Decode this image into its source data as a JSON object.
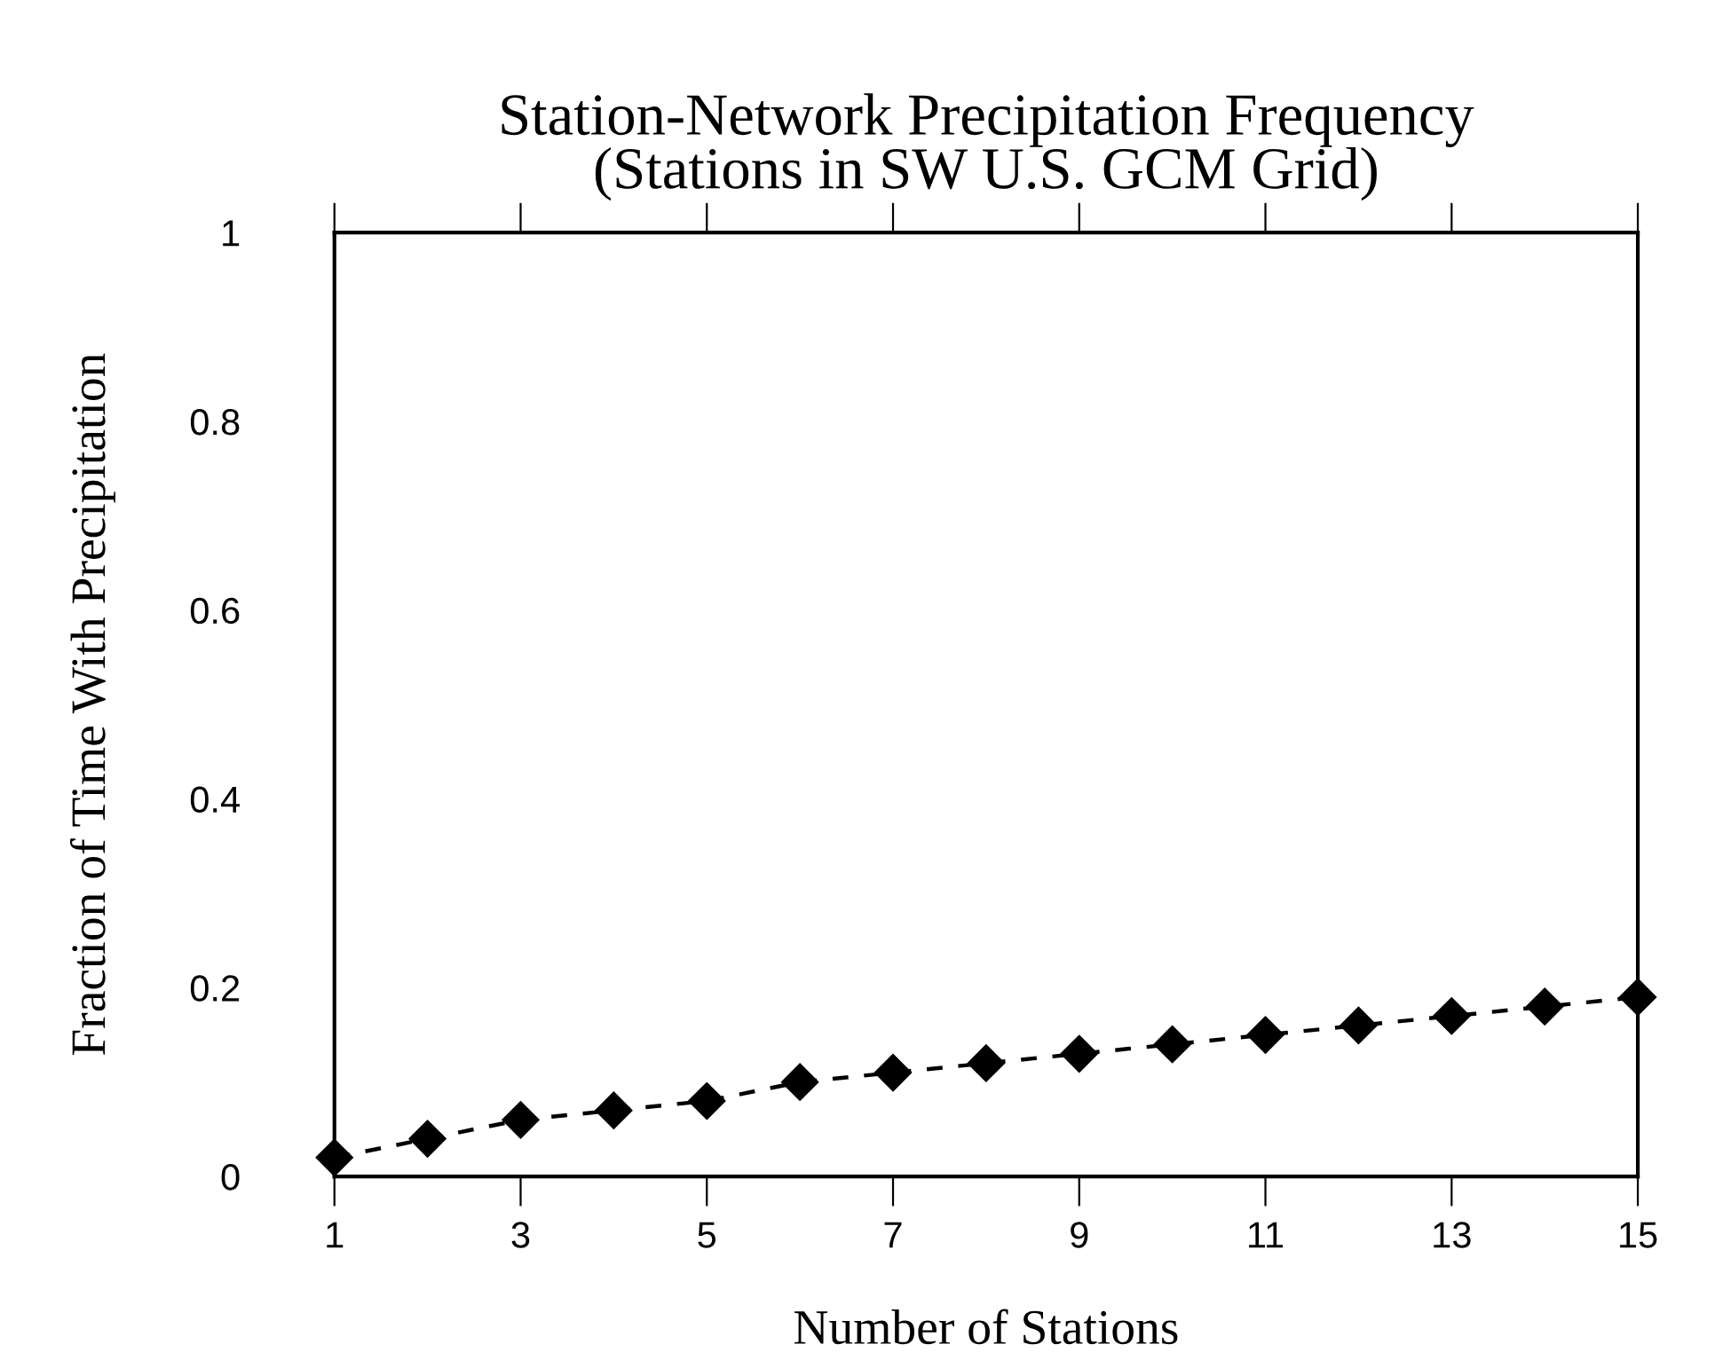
{
  "chart_data": {
    "type": "line",
    "title": "Station-Network Precipitation Frequency\n(Stations in SW U.S. GCM Grid)",
    "xlabel": "Number of Stations",
    "ylabel": "Fraction of Time With Precipitation",
    "x": [
      1,
      2,
      3,
      4,
      5,
      6,
      7,
      8,
      9,
      10,
      11,
      12,
      13,
      14,
      15
    ],
    "series": [
      {
        "color": "#000000",
        "values": [
          0.02,
          0.04,
          0.06,
          0.07,
          0.08,
          0.1,
          0.11,
          0.12,
          0.13,
          0.14,
          0.15,
          0.16,
          0.17,
          0.18,
          0.19
        ]
      }
    ],
    "xlim": [
      1,
      15
    ],
    "xticks": [
      1,
      3,
      5,
      7,
      9,
      11,
      13,
      15
    ],
    "ylim": [
      0,
      1
    ],
    "yticks": [
      0,
      0.2,
      0.4,
      0.6,
      0.8,
      1
    ],
    "marker": "diamond",
    "line_style": "dashed",
    "grid": false,
    "legend": false
  }
}
